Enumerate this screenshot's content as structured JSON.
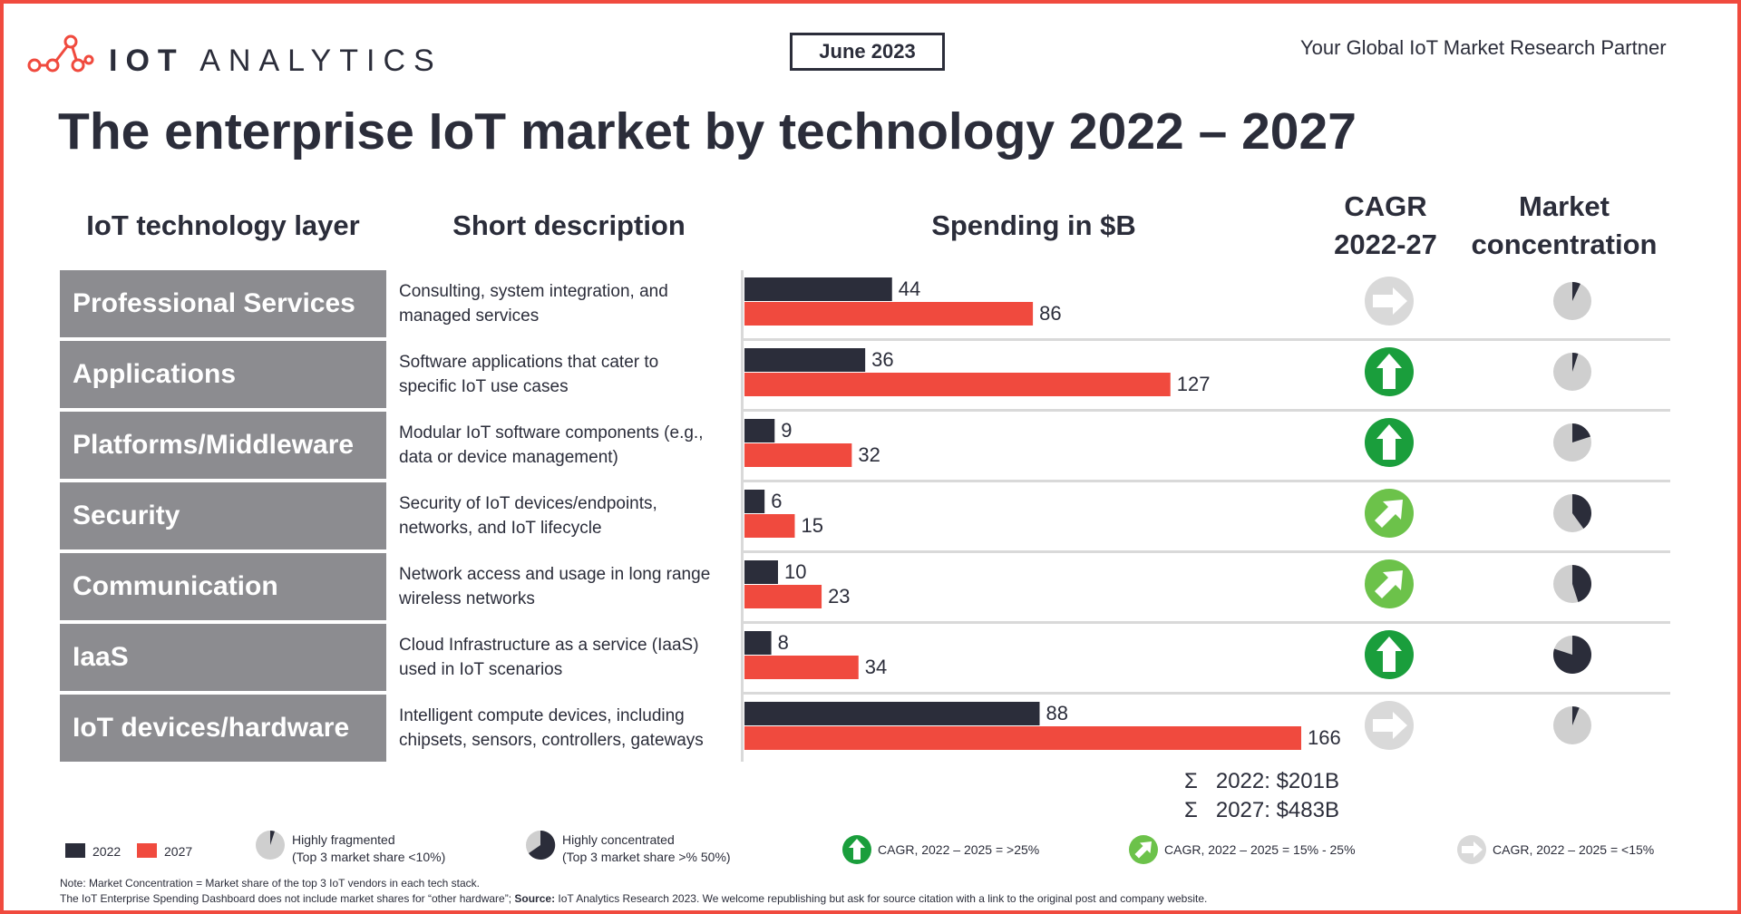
{
  "header": {
    "logo_text_bold": "IOT",
    "logo_text_light": "ANALYTICS",
    "date_badge": "June 2023",
    "tagline": "Your Global IoT Market Research Partner",
    "title": "The enterprise IoT market by technology 2022 – 2027"
  },
  "columns": {
    "layer": "IoT technology layer",
    "description": "Short description",
    "spending": "Spending in $B",
    "cagr_line1": "CAGR",
    "cagr_line2": "2022-27",
    "concentration_line1": "Market",
    "concentration_line2": "concentration"
  },
  "rows": [
    {
      "layer": "Professional Services",
      "desc1": "Consulting, system integration, and",
      "desc2": "managed services",
      "cagr": "low",
      "concentration": 0.07
    },
    {
      "layer": "Applications",
      "desc1": "Software applications that cater to",
      "desc2": "specific IoT use cases",
      "cagr": "high",
      "concentration": 0.05
    },
    {
      "layer": "Platforms/Middleware",
      "desc1": "Modular IoT software components (e.g.,",
      "desc2": "data or device management)",
      "cagr": "high",
      "concentration": 0.2
    },
    {
      "layer": "Security",
      "desc1": "Security of IoT devices/endpoints,",
      "desc2": "networks, and IoT lifecycle",
      "cagr": "medium",
      "concentration": 0.4
    },
    {
      "layer": "Communication",
      "desc1": "Network access and usage in long range",
      "desc2": "wireless networks",
      "cagr": "medium",
      "concentration": 0.45
    },
    {
      "layer": "IaaS",
      "desc1": "Cloud Infrastructure as a service (IaaS)",
      "desc2": "used in IoT scenarios",
      "cagr": "high",
      "concentration": 0.8
    },
    {
      "layer": "IoT devices/hardware",
      "desc1": "Intelligent compute devices, including",
      "desc2": "chipsets, sensors, controllers, gateways",
      "cagr": "low",
      "concentration": 0.06
    }
  ],
  "chart_data": {
    "type": "bar",
    "orientation": "horizontal",
    "categories": [
      "Professional Services",
      "Applications",
      "Platforms/Middleware",
      "Security",
      "Communication",
      "IaaS",
      "IoT devices/hardware"
    ],
    "series": [
      {
        "name": "2022",
        "color": "#2b2d3a",
        "values": [
          44,
          36,
          9,
          6,
          10,
          8,
          88
        ]
      },
      {
        "name": "2027",
        "color": "#f04a3e",
        "values": [
          86,
          127,
          32,
          15,
          23,
          34,
          166
        ]
      }
    ],
    "title": "Spending in $B",
    "xlabel": "",
    "ylabel": "",
    "xlim": [
      0,
      166
    ],
    "grid": false,
    "legend": "bottom-left"
  },
  "totals": {
    "sigma": "Σ",
    "line_2022": "2022: $201B",
    "line_2027": "2027: $483B"
  },
  "legend": {
    "label_2022": "2022",
    "label_2027": "2027",
    "fragmented_title": "Highly fragmented",
    "fragmented_sub": "(Top 3 market share <10%)",
    "concentrated_title": "Highly concentrated",
    "concentrated_sub": "(Top 3 market share >% 50%)",
    "cagr_high": "CAGR, 2022 – 2025 = >25%",
    "cagr_medium": "CAGR, 2022 – 2025 = 15% - 25%",
    "cagr_low": "CAGR, 2022 – 2025 = <15%"
  },
  "notes": {
    "line1": "Note: Market Concentration = Market share of the top 3 IoT vendors in each tech stack.",
    "line2_a": "The IoT Enterprise Spending Dashboard does not include market shares for “other hardware”; ",
    "line2_source_label": "Source:",
    "line2_b": " IoT Analytics Research 2023. We welcome republishing but ask for source citation with a link to the original post and company website."
  },
  "colors": {
    "accent": "#f04a3e",
    "dark": "#2b2d3a",
    "label_gray": "#8c8c90",
    "green_high": "#1a9e3c",
    "green_medium": "#6cc24a",
    "gray_low": "#d9d9d9"
  }
}
